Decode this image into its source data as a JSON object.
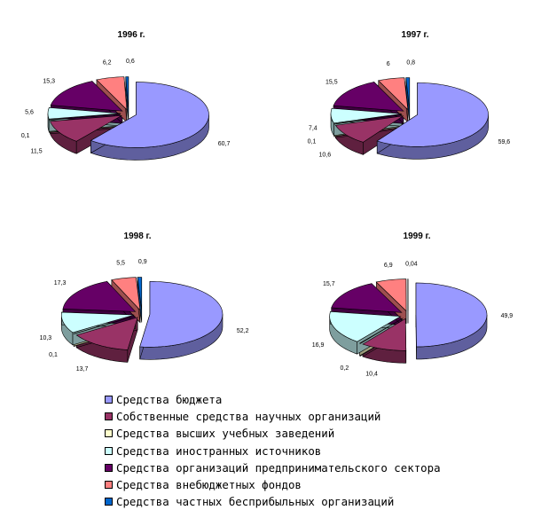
{
  "legend": {
    "items": [
      {
        "label": "Средства бюджета",
        "color": "#9999ff"
      },
      {
        "label": "Собственные средства научных организаций",
        "color": "#993366"
      },
      {
        "label": "Средства высших учебных заведений",
        "color": "#ffffcc"
      },
      {
        "label": "Средства иностранных источников",
        "color": "#ccffff"
      },
      {
        "label": "Средства организаций предпринимательского сектора",
        "color": "#660066"
      },
      {
        "label": "Средства внебюджетных фондов",
        "color": "#ff8080"
      },
      {
        "label": "Средства частных бесприбыльных организаций",
        "color": "#0066cc"
      }
    ]
  },
  "chart_data": [
    {
      "type": "pie",
      "title": "1996 г.",
      "series": [
        {
          "name": "Средства бюджета",
          "value": 60.7,
          "label": "60,7"
        },
        {
          "name": "Собственные средства научных организаций",
          "value": 11.5,
          "label": "11,5"
        },
        {
          "name": "Средства высших учебных заведений",
          "value": 0.1,
          "label": "0,1"
        },
        {
          "name": "Средства иностранных источников",
          "value": 5.6,
          "label": "5,6"
        },
        {
          "name": "Средства организаций предпринимательского сектора",
          "value": 15.3,
          "label": "15,3"
        },
        {
          "name": "Средства внебюджетных фондов",
          "value": 6.2,
          "label": "6,2"
        },
        {
          "name": "Средства частных бесприбыльных организаций",
          "value": 0.6,
          "label": "0,6"
        }
      ]
    },
    {
      "type": "pie",
      "title": "1997 г.",
      "series": [
        {
          "name": "Средства бюджета",
          "value": 59.6,
          "label": "59,6"
        },
        {
          "name": "Собственные средства научных организаций",
          "value": 10.6,
          "label": "10,6"
        },
        {
          "name": "Средства высших учебных заведений",
          "value": 0.1,
          "label": "0,1"
        },
        {
          "name": "Средства иностранных источников",
          "value": 7.4,
          "label": "7,4"
        },
        {
          "name": "Средства организаций предпринимательского сектора",
          "value": 15.5,
          "label": "15,5"
        },
        {
          "name": "Средства внебюджетных фондов",
          "value": 6,
          "label": "6"
        },
        {
          "name": "Средства частных бесприбыльных организаций",
          "value": 0.8,
          "label": "0,8"
        }
      ]
    },
    {
      "type": "pie",
      "title": "1998 г.",
      "series": [
        {
          "name": "Средства бюджета",
          "value": 52.2,
          "label": "52,2"
        },
        {
          "name": "Собственные средства научных организаций",
          "value": 13.7,
          "label": "13,7"
        },
        {
          "name": "Средства высших учебных заведений",
          "value": 0.1,
          "label": "0,1"
        },
        {
          "name": "Средства иностранных источников",
          "value": 10.3,
          "label": "10,3"
        },
        {
          "name": "Средства организаций предпринимательского сектора",
          "value": 17.3,
          "label": "17,3"
        },
        {
          "name": "Средства внебюджетных фондов",
          "value": 5.5,
          "label": "5,5"
        },
        {
          "name": "Средства частных бесприбыльных организаций",
          "value": 0.9,
          "label": "0,9"
        }
      ]
    },
    {
      "type": "pie",
      "title": "1999 г.",
      "series": [
        {
          "name": "Средства бюджета",
          "value": 49.9,
          "label": "49,9"
        },
        {
          "name": "Собственные средства научных организаций",
          "value": 10.4,
          "label": "10,4"
        },
        {
          "name": "Средства высших учебных заведений",
          "value": 0.2,
          "label": "0,2"
        },
        {
          "name": "Средства иностранных источников",
          "value": 16.9,
          "label": "16,9"
        },
        {
          "name": "Средства организаций предпринимательского сектора",
          "value": 15.7,
          "label": "15,7"
        },
        {
          "name": "Средства внебюджетных фондов",
          "value": 6.9,
          "label": "6,9"
        },
        {
          "name": "Средства частных бесприбыльных организаций",
          "value": 0.04,
          "label": "0,04"
        }
      ]
    }
  ]
}
